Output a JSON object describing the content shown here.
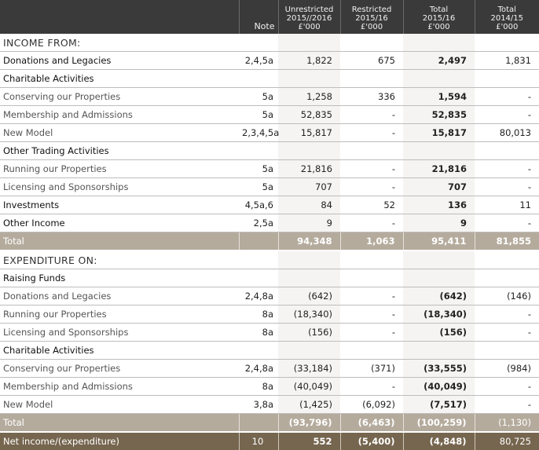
{
  "headers": {
    "label": "",
    "note": "Note",
    "unrestricted": [
      "Unrestricted",
      "2015//2016",
      "£'000"
    ],
    "restricted": [
      "Restricted",
      "2015/16",
      "£'000"
    ],
    "total": [
      "Total",
      "2015/16",
      "£'000"
    ],
    "prior": [
      "Total",
      "2014/15",
      "£'000"
    ]
  },
  "rows": [
    {
      "type": "section",
      "label": "INCOME FROM:",
      "note": "",
      "unrestricted": "",
      "restricted": "",
      "total": "",
      "prior": ""
    },
    {
      "type": "bold-item",
      "label": "Donations and Legacies",
      "note": "2,4,5a",
      "unrestricted": "1,822",
      "restricted": "675",
      "total": "2,497",
      "prior": "1,831"
    },
    {
      "type": "sub",
      "label": "Charitable Activities",
      "note": "",
      "unrestricted": "",
      "restricted": "",
      "total": "",
      "prior": ""
    },
    {
      "type": "item",
      "label": "Conserving our Properties",
      "note": "5a",
      "unrestricted": "1,258",
      "restricted": "336",
      "total": "1,594",
      "prior": "-"
    },
    {
      "type": "item",
      "label": "Membership and Admissions",
      "note": "5a",
      "unrestricted": "52,835",
      "restricted": "-",
      "total": "52,835",
      "prior": "-"
    },
    {
      "type": "item",
      "label": "New Model",
      "note": "2,3,4,5a",
      "unrestricted": "15,817",
      "restricted": "-",
      "total": "15,817",
      "prior": "80,013"
    },
    {
      "type": "sub",
      "label": "Other Trading Activities",
      "note": "",
      "unrestricted": "",
      "restricted": "",
      "total": "",
      "prior": ""
    },
    {
      "type": "item",
      "label": "Running our Properties",
      "note": "5a",
      "unrestricted": "21,816",
      "restricted": "-",
      "total": "21,816",
      "prior": "-"
    },
    {
      "type": "item",
      "label": "Licensing and Sponsorships",
      "note": "5a",
      "unrestricted": "707",
      "restricted": "-",
      "total": "707",
      "prior": "-"
    },
    {
      "type": "bold-item",
      "label": "Investments",
      "note": "4,5a,6",
      "unrestricted": "84",
      "restricted": "52",
      "total": "136",
      "prior": "11"
    },
    {
      "type": "bold-item",
      "label": "Other Income",
      "note": "2,5a",
      "unrestricted": "9",
      "restricted": "-",
      "total": "9",
      "prior": "-"
    },
    {
      "type": "total",
      "label": "Total",
      "note": "",
      "unrestricted": "94,348",
      "restricted": "1,063",
      "total": "95,411",
      "prior": "81,855"
    },
    {
      "type": "section",
      "label": "EXPENDITURE ON:",
      "note": "",
      "unrestricted": "",
      "restricted": "",
      "total": "",
      "prior": ""
    },
    {
      "type": "sub",
      "label": "Raising Funds",
      "note": "",
      "unrestricted": "",
      "restricted": "",
      "total": "",
      "prior": ""
    },
    {
      "type": "item",
      "label": "Donations and Legacies",
      "note": "2,4,8a",
      "unrestricted": "(642)",
      "restricted": "-",
      "total": "(642)",
      "prior": "(146)"
    },
    {
      "type": "item",
      "label": "Running our Properties",
      "note": "8a",
      "unrestricted": "(18,340)",
      "restricted": "-",
      "total": "(18,340)",
      "prior": "-"
    },
    {
      "type": "item",
      "label": "Licensing and Sponsorships",
      "note": "8a",
      "unrestricted": "(156)",
      "restricted": "-",
      "total": "(156)",
      "prior": "-"
    },
    {
      "type": "sub",
      "label": "Charitable Activities",
      "note": "",
      "unrestricted": "",
      "restricted": "",
      "total": "",
      "prior": ""
    },
    {
      "type": "item",
      "label": "Conserving our Properties",
      "note": "2,4,8a",
      "unrestricted": "(33,184)",
      "restricted": "(371)",
      "total": "(33,555)",
      "prior": "(984)"
    },
    {
      "type": "item",
      "label": "Membership and Admissions",
      "note": "8a",
      "unrestricted": "(40,049)",
      "restricted": "-",
      "total": "(40,049)",
      "prior": "-"
    },
    {
      "type": "item",
      "label": "New Model",
      "note": "3,8a",
      "unrestricted": "(1,425)",
      "restricted": "(6,092)",
      "total": "(7,517)",
      "prior": "-"
    },
    {
      "type": "total",
      "label": "Total",
      "note": "",
      "unrestricted": "(93,796)",
      "restricted": "(6,463)",
      "total": "(100,259)",
      "prior": "(1,130)"
    },
    {
      "type": "net",
      "label": "Net income/(expenditure)",
      "note": "10",
      "unrestricted": "552",
      "restricted": "(5,400)",
      "total": "(4,848)",
      "prior": "80,725"
    }
  ],
  "colors": {
    "header_bg": "#3a3a3a",
    "total_bg": "#b5ab9d",
    "net_bg": "#76664f",
    "shaded_col": "#f5f4f2"
  }
}
